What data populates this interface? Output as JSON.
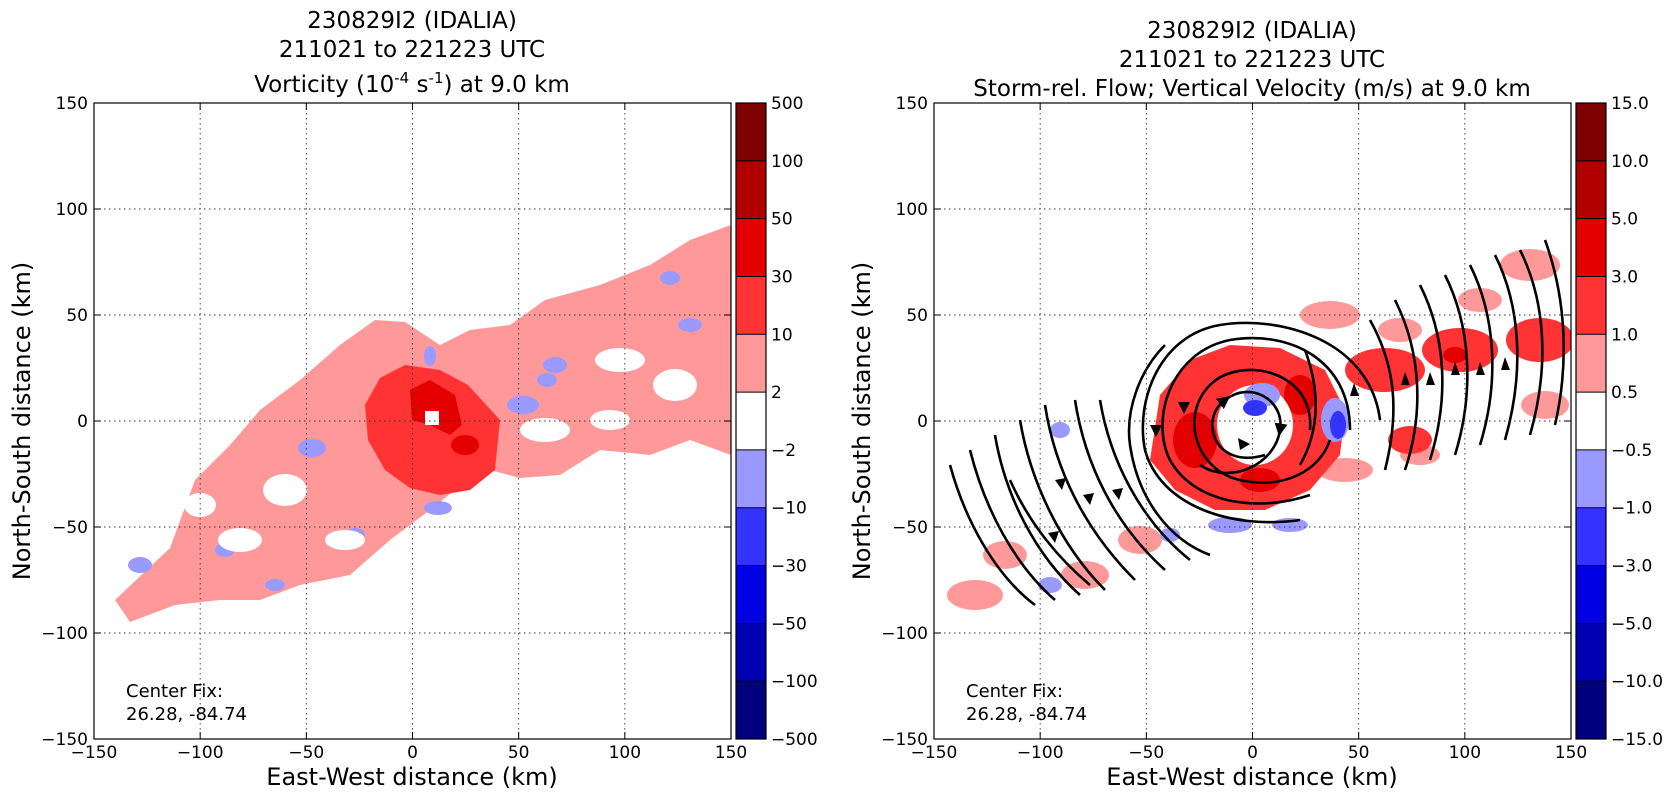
{
  "chart_data": [
    {
      "type": "heatmap",
      "title_lines": [
        "230829I2 (IDALIA)",
        "211021 to 221223 UTC"
      ],
      "title_line3": {
        "prefix": "Vorticity (10",
        "sup1": "-4",
        "mid": " s",
        "sup2": "-1",
        "suffix": ") at 9.0 km"
      },
      "xlabel": "East-West distance (km)",
      "ylabel": "North-South distance (km)",
      "xlim": [
        -150,
        150
      ],
      "ylim": [
        -150,
        150
      ],
      "x_ticks": [
        "−150",
        "−100",
        "−50",
        "0",
        "50",
        "100",
        "150"
      ],
      "y_ticks": [
        "150",
        "100",
        "50",
        "0",
        "−50",
        "−100",
        "−150"
      ],
      "grid": true,
      "colorbar": {
        "levels": [
          "500",
          "100",
          "50",
          "30",
          "10",
          "2",
          "−2",
          "−10",
          "−30",
          "−50",
          "−100",
          "−500"
        ],
        "colors": [
          "#7f0000",
          "#b20000",
          "#e50000",
          "#ff3333",
          "#ff9999",
          "#ffffff",
          "#9999ff",
          "#3333ff",
          "#0000e5",
          "#0000b2",
          "#00007f"
        ]
      },
      "annotation": {
        "line1": "Center Fix:",
        "line2": "26.28, -84.74"
      },
      "center_marker": [
        8,
        1
      ]
    },
    {
      "type": "heatmap",
      "title_lines": [
        "230829I2 (IDALIA)",
        "211021 to 221223 UTC",
        "Storm-rel. Flow; Vertical Velocity (m/s) at 9.0 km"
      ],
      "xlabel": "East-West distance (km)",
      "ylabel": "North-South distance (km)",
      "xlim": [
        -150,
        150
      ],
      "ylim": [
        -150,
        150
      ],
      "x_ticks": [
        "−150",
        "−100",
        "−50",
        "0",
        "50",
        "100",
        "150"
      ],
      "y_ticks": [
        "150",
        "100",
        "50",
        "0",
        "−50",
        "−100",
        "−150"
      ],
      "grid": true,
      "colorbar": {
        "levels": [
          "15.0",
          "10.0",
          "5.0",
          "3.0",
          "1.0",
          "0.5",
          "−0.5",
          "−1.0",
          "−3.0",
          "−5.0",
          "−10.0",
          "−15.0"
        ],
        "colors": [
          "#7f0000",
          "#b20000",
          "#e50000",
          "#ff3333",
          "#ff9999",
          "#ffffff",
          "#9999ff",
          "#3333ff",
          "#0000e5",
          "#0000b2",
          "#00007f"
        ]
      },
      "annotation": {
        "line1": "Center Fix:",
        "line2": "26.28, -84.74"
      },
      "streamlines": "cyclonic circulation centred near (5, -5) km with SW-to-NE flow in the outer band"
    }
  ]
}
